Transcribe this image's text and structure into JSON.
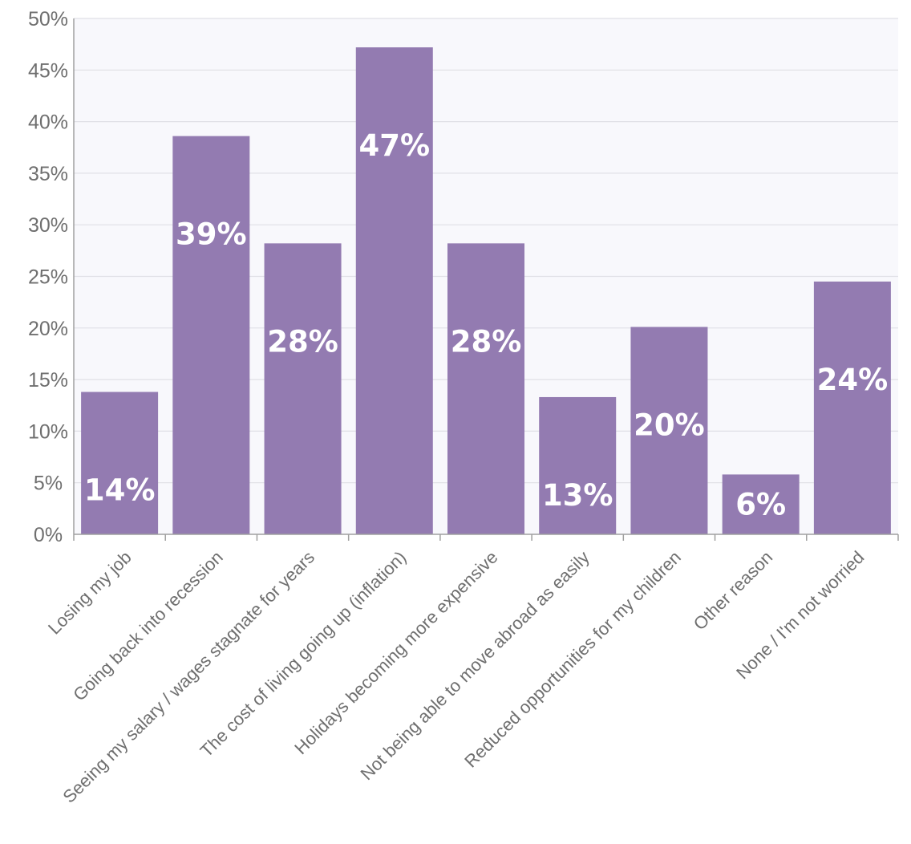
{
  "chart_data": {
    "type": "bar",
    "title": "",
    "xlabel": "",
    "ylabel": "",
    "categories": [
      "Losing my job",
      "Going back into recession",
      "Seeing my salary / wages stagnate for years",
      "The cost of living going up (inflation)",
      "Holidays becoming more expensive",
      "Not being able to move abroad as easily",
      "Reduced opportunities for my children",
      "Other reason",
      "None / I'm not worried"
    ],
    "values": [
      13.8,
      38.6,
      28.2,
      47.2,
      28.2,
      13.3,
      20.1,
      5.8,
      24.5
    ],
    "data_labels": [
      "14%",
      "39%",
      "28%",
      "47%",
      "28%",
      "13%",
      "20%",
      "6%",
      "24%"
    ],
    "y_ticks": [
      "0%",
      "5%",
      "10%",
      "15%",
      "20%",
      "25%",
      "30%",
      "35%",
      "40%",
      "45%",
      "50%"
    ],
    "ylim": [
      0,
      50
    ],
    "y_unit": "%",
    "grid": true,
    "legend": "none",
    "colors": {
      "bar": "#937bb1",
      "plot_background": "#f8f8fc",
      "gridline": "#e0e0e6",
      "axis": "#a0a0a0",
      "text": "#6f6f6f",
      "data_label": "#ffffff"
    }
  }
}
